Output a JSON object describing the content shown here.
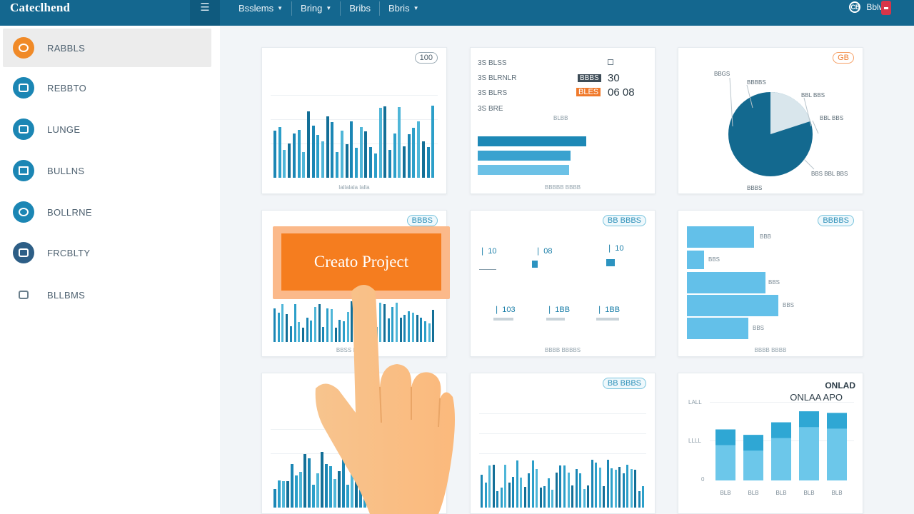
{
  "app": {
    "brand": "Cateclhend"
  },
  "topbar": {
    "menu_icon": "hamburger-icon",
    "nav": [
      {
        "label": "Bsslems",
        "caret": true
      },
      {
        "label": "Bring",
        "caret": true
      },
      {
        "label": "Bribs",
        "caret": false
      },
      {
        "label": "Bbris",
        "caret": true
      }
    ],
    "user_label": "Bblwe",
    "user_icon_glyph": "CB"
  },
  "sidebar": {
    "items": [
      {
        "label": "RABBLS",
        "icon": "dashboard-icon",
        "active": true
      },
      {
        "label": "REBBTO",
        "icon": "projects-icon",
        "active": false
      },
      {
        "label": "LUNGE",
        "icon": "tasks-icon",
        "active": false
      },
      {
        "label": "BULLNS",
        "icon": "reports-icon",
        "active": false
      },
      {
        "label": "BOLLRNE",
        "icon": "team-icon",
        "active": false
      },
      {
        "label": "FRCBLTY",
        "icon": "calendar-icon",
        "active": false
      },
      {
        "label": "BLLBMS",
        "icon": "settings-icon",
        "active": false
      }
    ]
  },
  "cards": {
    "c1": {
      "tag": "100",
      "foot": "lallalala lalla"
    },
    "c2": {
      "rows": [
        {
          "label": "3S  BLSS",
          "value": ""
        },
        {
          "label": "3S  BLRNLR",
          "badge": "BBBS",
          "value": "30"
        },
        {
          "label": "3S  BLRS",
          "badge": "BLES",
          "value": "06 08"
        },
        {
          "label": "3S  BRE",
          "value": ""
        }
      ],
      "mid": "BLBB",
      "foot": "BBBBB  BBBB"
    },
    "c3": {
      "tag": "GB",
      "labels": [
        "BBGS",
        "BBBBS",
        "BBL BBS",
        "BBL BBS",
        "BBS BBL BBS",
        "BBBS"
      ],
      "chart_data": {
        "type": "pie",
        "values": [
          80,
          20
        ]
      }
    },
    "c4": {
      "tag": "BBBS",
      "foot": "BBSS  BBBBB"
    },
    "c5": {
      "tag": "BB BBBS",
      "stats": [
        "10",
        "08",
        "10",
        "103",
        "1BB",
        "1BB"
      ],
      "foot": "BBBB BBBBS"
    },
    "c6": {
      "tag": "BBBBS",
      "labels": [
        "BBB",
        "BBS",
        "BBS",
        "BBS",
        "BBS"
      ],
      "foot": "BBBB BBBB"
    },
    "c7": {},
    "c8": {
      "tag": "BB BBBS"
    },
    "c9": {
      "title1": "ONLAD",
      "title2": "ONLAA APO",
      "ylabels": [
        "LALL",
        "LLLL",
        "0"
      ],
      "xlabels": [
        "BLB",
        "BLB",
        "BLB",
        "BLB",
        "BLB"
      ],
      "chart_data": {
        "type": "bar",
        "values": [
          65,
          58,
          74,
          88,
          86
        ]
      }
    }
  },
  "create_project": {
    "label": "Creato Project"
  },
  "colors": {
    "topbar": "#14678f",
    "accent_orange": "#f57d1f",
    "teal": "#1b86b4"
  }
}
